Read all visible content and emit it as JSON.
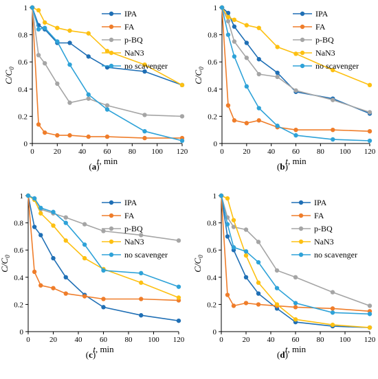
{
  "colors": {
    "IPA": "#1f6fb5",
    "FA": "#ef7d2a",
    "p-BQ": "#a5a5a5",
    "NaN3": "#fdc012",
    "no scavenger": "#2ea2d8"
  },
  "chart_data": [
    {
      "type": "line",
      "panel_label": "(a)",
      "xlabel_var": "t",
      "xlabel_unit": ", min",
      "ylabel_main": "C/C",
      "ylabel_sub": "0",
      "xlim": [
        0,
        120
      ],
      "ylim": [
        0,
        1
      ],
      "xticks": [
        "0",
        "20",
        "40",
        "60",
        "80",
        "100",
        "120"
      ],
      "yticks": [
        "0",
        "0.2",
        "0.4",
        "0.6",
        "0.8",
        "1"
      ],
      "grid": false,
      "legend": "top-right",
      "x": [
        0,
        5,
        10,
        20,
        30,
        45,
        60,
        90,
        120
      ],
      "series": [
        {
          "name": "IPA",
          "values": [
            1,
            0.87,
            0.84,
            0.74,
            0.74,
            0.64,
            0.56,
            0.53,
            0.43
          ]
        },
        {
          "name": "FA",
          "values": [
            1,
            0.14,
            0.08,
            0.06,
            0.06,
            0.05,
            0.05,
            0.04,
            0.04
          ]
        },
        {
          "name": "p-BQ",
          "values": [
            1,
            0.65,
            0.59,
            0.44,
            0.3,
            0.33,
            0.28,
            0.21,
            0.2
          ]
        },
        {
          "name": "NaN3",
          "values": [
            1,
            0.98,
            0.89,
            0.85,
            0.83,
            0.81,
            0.68,
            0.58,
            0.43
          ]
        },
        {
          "name": "no scavenger",
          "values": [
            1,
            0.84,
            0.85,
            0.75,
            0.58,
            0.36,
            0.25,
            0.09,
            0.02
          ]
        }
      ]
    },
    {
      "type": "line",
      "panel_label": "(b)",
      "xlabel_var": "t",
      "xlabel_unit": ", min",
      "ylabel_main": "C/C",
      "ylabel_sub": "0",
      "xlim": [
        0,
        120
      ],
      "ylim": [
        0,
        1
      ],
      "xticks": [
        "0",
        "20",
        "40",
        "60",
        "80",
        "100",
        "120"
      ],
      "yticks": [
        "0",
        "0.2",
        "0.4",
        "0.6",
        "0.8",
        "1"
      ],
      "grid": false,
      "legend": "top-right",
      "x": [
        0,
        5,
        10,
        20,
        30,
        45,
        60,
        90,
        120
      ],
      "series": [
        {
          "name": "IPA",
          "values": [
            1,
            0.96,
            0.86,
            0.74,
            0.62,
            0.52,
            0.38,
            0.33,
            0.22
          ]
        },
        {
          "name": "FA",
          "values": [
            1,
            0.28,
            0.17,
            0.15,
            0.17,
            0.12,
            0.1,
            0.1,
            0.09
          ]
        },
        {
          "name": "p-BQ",
          "values": [
            1,
            0.9,
            0.75,
            0.63,
            0.51,
            0.49,
            0.39,
            0.32,
            0.23
          ]
        },
        {
          "name": "NaN3",
          "values": [
            1,
            0.93,
            0.91,
            0.87,
            0.85,
            0.71,
            0.66,
            0.54,
            0.43
          ]
        },
        {
          "name": "no scavenger",
          "values": [
            1,
            0.8,
            0.64,
            0.42,
            0.26,
            0.13,
            0.06,
            0.03,
            0.02
          ]
        }
      ]
    },
    {
      "type": "line",
      "panel_label": "(c)",
      "xlabel_var": "t",
      "xlabel_unit": ", min",
      "ylabel_main": "C/C",
      "ylabel_sub": "0",
      "xlim": [
        0,
        120
      ],
      "ylim": [
        0,
        1
      ],
      "xticks": [
        "0",
        "20",
        "40",
        "60",
        "80",
        "100",
        "120"
      ],
      "yticks": [
        "0",
        "0.2",
        "0.4",
        "0.6",
        "0.8",
        "1"
      ],
      "grid": false,
      "legend": "top-right",
      "x": [
        0,
        5,
        10,
        20,
        30,
        45,
        60,
        90,
        120
      ],
      "series": [
        {
          "name": "IPA",
          "values": [
            1,
            0.77,
            0.71,
            0.54,
            0.4,
            0.27,
            0.18,
            0.12,
            0.08
          ]
        },
        {
          "name": "FA",
          "values": [
            1,
            0.44,
            0.34,
            0.32,
            0.28,
            0.26,
            0.24,
            0.24,
            0.23
          ]
        },
        {
          "name": "p-BQ",
          "values": [
            1,
            0.98,
            0.9,
            0.87,
            0.84,
            0.79,
            0.74,
            0.71,
            0.67
          ]
        },
        {
          "name": "NaN3",
          "values": [
            1,
            0.97,
            0.87,
            0.78,
            0.67,
            0.54,
            0.46,
            0.36,
            0.25
          ]
        },
        {
          "name": "no scavenger",
          "values": [
            1,
            0.98,
            0.91,
            0.88,
            0.8,
            0.64,
            0.45,
            0.43,
            0.33
          ]
        }
      ]
    },
    {
      "type": "line",
      "panel_label": "(d)",
      "xlabel_var": "t",
      "xlabel_unit": ", min",
      "ylabel_main": "C/C",
      "ylabel_sub": "0",
      "xlim": [
        0,
        120
      ],
      "ylim": [
        0,
        1
      ],
      "xticks": [
        "0",
        "20",
        "40",
        "60",
        "80",
        "100",
        "120"
      ],
      "yticks": [
        "0",
        "0.2",
        "0.4",
        "0.6",
        "0.8",
        "1"
      ],
      "grid": false,
      "legend": "top-right",
      "x": [
        0,
        5,
        10,
        20,
        30,
        45,
        60,
        90,
        120
      ],
      "series": [
        {
          "name": "IPA",
          "values": [
            1,
            0.7,
            0.6,
            0.4,
            0.28,
            0.17,
            0.07,
            0.04,
            0.03
          ]
        },
        {
          "name": "FA",
          "values": [
            1,
            0.27,
            0.19,
            0.21,
            0.2,
            0.19,
            0.18,
            0.17,
            0.15
          ]
        },
        {
          "name": "p-BQ",
          "values": [
            1,
            0.84,
            0.77,
            0.75,
            0.66,
            0.45,
            0.4,
            0.29,
            0.19
          ]
        },
        {
          "name": "NaN3",
          "values": [
            1,
            0.98,
            0.82,
            0.56,
            0.36,
            0.2,
            0.09,
            0.05,
            0.03
          ]
        },
        {
          "name": "no scavenger",
          "values": [
            1,
            0.79,
            0.62,
            0.59,
            0.51,
            0.32,
            0.21,
            0.14,
            0.13
          ]
        }
      ]
    }
  ]
}
